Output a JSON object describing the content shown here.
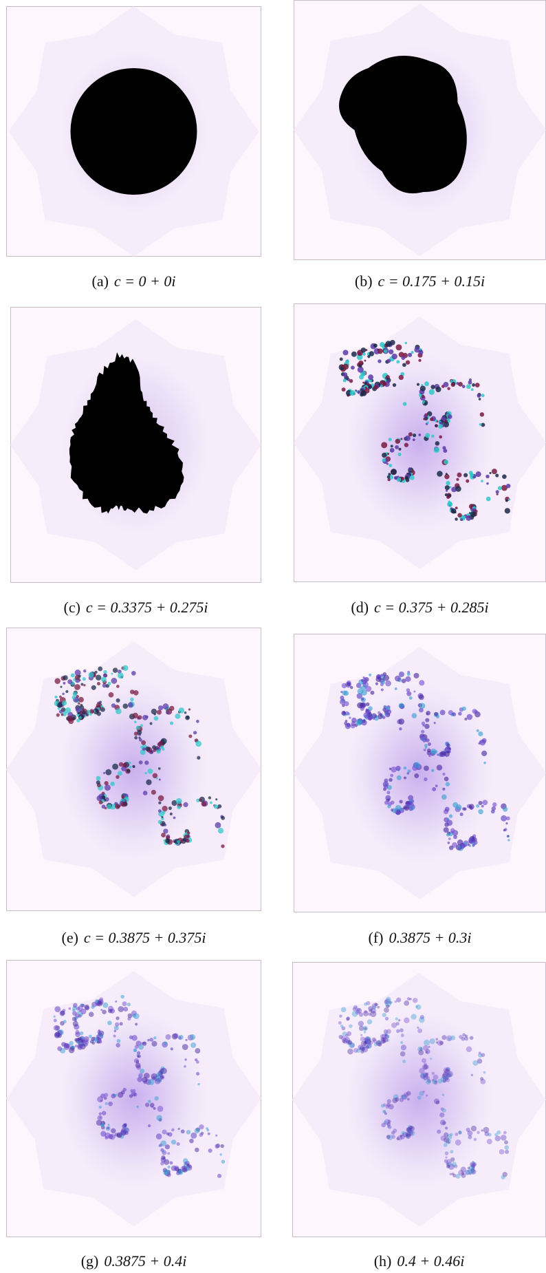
{
  "figure": {
    "panels": [
      {
        "label": "(a)",
        "caption": "c = 0 + 0i"
      },
      {
        "label": "(b)",
        "caption": "c = 0.175 + 0.15i"
      },
      {
        "label": "(c)",
        "caption": "c = 0.3375 + 0.275i"
      },
      {
        "label": "(d)",
        "caption": "c = 0.375 + 0.285i"
      },
      {
        "label": "(e)",
        "caption": "c = 0.3875 + 0.375i"
      },
      {
        "label": "(f)",
        "caption": "0.3875 + 0.3i"
      },
      {
        "label": "(g)",
        "caption": "0.3875 + 0.4i"
      },
      {
        "label": "(h)",
        "caption": "0.4 + 0.46i"
      }
    ]
  }
}
